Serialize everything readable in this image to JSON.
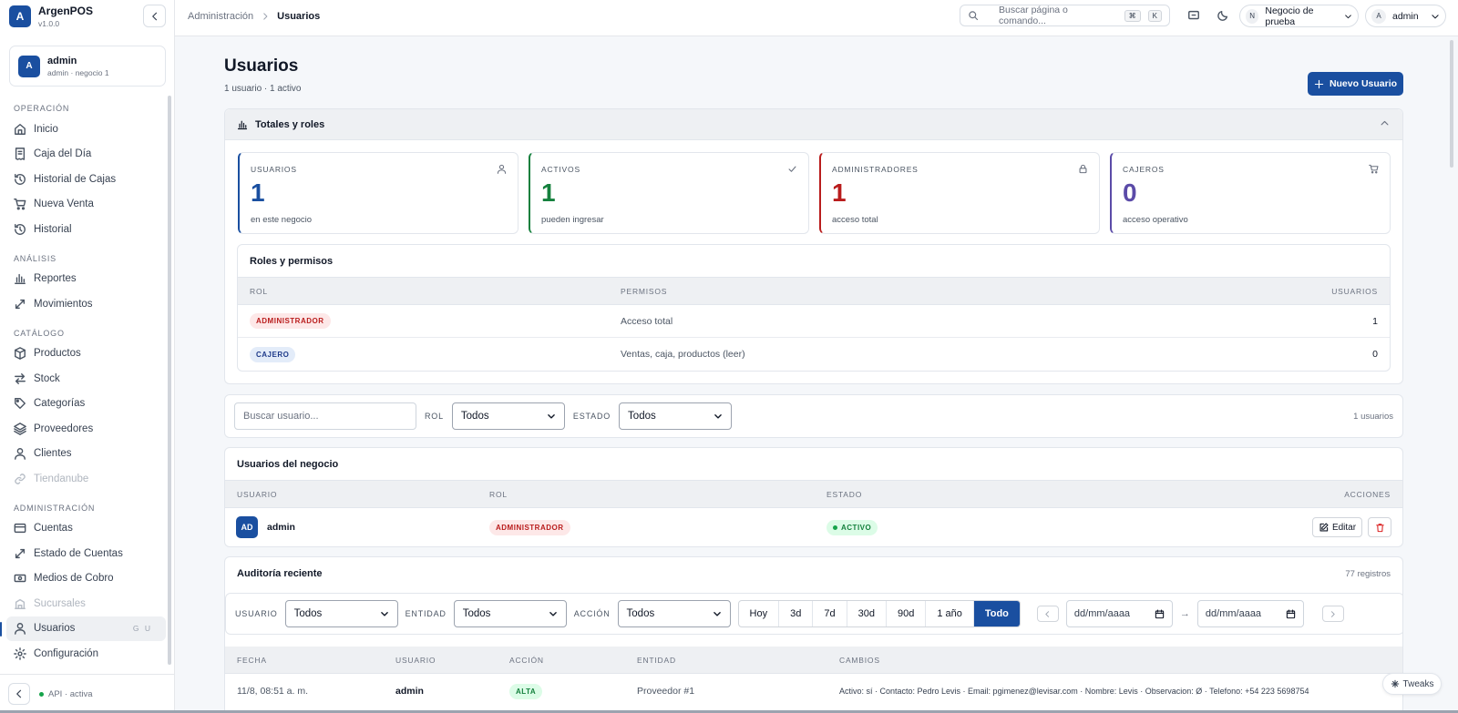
{
  "app": {
    "name": "ArgenPOS",
    "version": "v1.0.0",
    "logo_letter": "A"
  },
  "user_card": {
    "initial": "A",
    "name": "admin",
    "sub": "admin · negocio 1"
  },
  "nav": {
    "operacion": "OPERACIÓN",
    "analisis": "ANÁLISIS",
    "catalogo": "CATÁLOGO",
    "administracion": "ADMINISTRACIÓN",
    "items": {
      "inicio": "Inicio",
      "caja": "Caja del Día",
      "historial_cajas": "Historial de Cajas",
      "nueva_venta": "Nueva Venta",
      "historial": "Historial",
      "reportes": "Reportes",
      "movimientos": "Movimientos",
      "productos": "Productos",
      "stock": "Stock",
      "categorias": "Categorías",
      "proveedores": "Proveedores",
      "clientes": "Clientes",
      "tiendanube": "Tiendanube",
      "cuentas": "Cuentas",
      "estado_cuentas": "Estado de Cuentas",
      "medios_cobro": "Medios de Cobro",
      "sucursales": "Sucursales",
      "usuarios": "Usuarios",
      "usuarios_kbd": "G U",
      "configuracion": "Configuración"
    }
  },
  "footer": {
    "api": "API · activa"
  },
  "topbar": {
    "crumb1": "Administración",
    "crumb2": "Usuarios",
    "search_placeholder": "Buscar página o comando...",
    "kbd1": "⌘",
    "kbd2": "K",
    "business_initial": "N",
    "business": "Negocio de prueba",
    "user_initial": "A",
    "user": "admin"
  },
  "page": {
    "title": "Usuarios",
    "subtitle": "1 usuario · 1 activo",
    "new_button": "Nuevo Usuario"
  },
  "totals": {
    "title": "Totales y roles",
    "cards": [
      {
        "label": "USUARIOS",
        "value": "1",
        "hint": "en este negocio",
        "color": "#1a4fa0"
      },
      {
        "label": "ACTIVOS",
        "value": "1",
        "hint": "pueden ingresar",
        "color": "#15803d"
      },
      {
        "label": "ADMINISTRADORES",
        "value": "1",
        "hint": "acceso total",
        "color": "#b91c1c"
      },
      {
        "label": "CAJEROS",
        "value": "0",
        "hint": "acceso operativo",
        "color": "#5b4ba8"
      }
    ]
  },
  "roles": {
    "title": "Roles y permisos",
    "headers": {
      "rol": "ROL",
      "permisos": "PERMISOS",
      "usuarios": "USUARIOS"
    },
    "rows": [
      {
        "rol": "ADMINISTRADOR",
        "permisos": "Acceso total",
        "usuarios": "1"
      },
      {
        "rol": "CAJERO",
        "permisos": "Ventas, caja, productos (leer)",
        "usuarios": "0"
      }
    ]
  },
  "filters": {
    "search_placeholder": "Buscar usuario...",
    "rol_label": "ROL",
    "rol_value": "Todos",
    "estado_label": "ESTADO",
    "estado_value": "Todos",
    "count": "1 usuarios"
  },
  "users": {
    "title": "Usuarios del negocio",
    "headers": {
      "usuario": "USUARIO",
      "rol": "ROL",
      "estado": "ESTADO",
      "acciones": "ACCIONES"
    },
    "rows": [
      {
        "initials": "AD",
        "name": "admin",
        "rol": "ADMINISTRADOR",
        "estado": "ACTIVO",
        "edit": "Editar"
      }
    ]
  },
  "audit": {
    "title": "Auditoría reciente",
    "count": "77 registros",
    "usuario_label": "USUARIO",
    "usuario_value": "Todos",
    "entidad_label": "ENTIDAD",
    "entidad_value": "Todos",
    "accion_label": "ACCIÓN",
    "accion_value": "Todos",
    "ranges": [
      "Hoy",
      "3d",
      "7d",
      "30d",
      "90d",
      "1 año",
      "Todo"
    ],
    "date_placeholder": "dd/mm/aaaa",
    "arrow": "→",
    "headers": {
      "fecha": "FECHA",
      "usuario": "USUARIO",
      "accion": "ACCIÓN",
      "entidad": "ENTIDAD",
      "cambios": "CAMBIOS"
    },
    "rows": [
      {
        "fecha": "11/8, 08:51 a. m.",
        "usuario": "admin",
        "accion": "ALTA",
        "entidad": "Proveedor #1",
        "cambios": "Activo: sí · Contacto: Pedro Levis · Email: pgimenez@levisar.com · Nombre: Levis · Observacion: Ø · Telefono: +54 223 5698754"
      }
    ]
  },
  "tweaks": "Tweaks"
}
